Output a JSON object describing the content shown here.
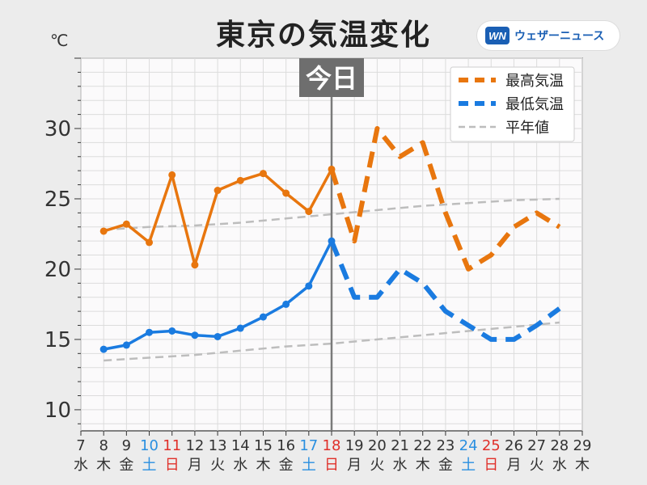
{
  "title": "東京の気温変化",
  "unit": "℃",
  "brand": {
    "logo": "WN",
    "name": "ウェザーニュース"
  },
  "today_label": "今日",
  "colors": {
    "high": "#e8760e",
    "low": "#1a7be0",
    "normal": "#bdbdbd",
    "today_line": "#7a7a7a",
    "saturday": "#2a8fe0",
    "sunday": "#e0302a"
  },
  "chart_data": {
    "type": "line",
    "title": "東京の気温変化",
    "ylabel": "℃",
    "ylim": [
      8.5,
      35
    ],
    "y_ticks": [
      10,
      15,
      20,
      25,
      30
    ],
    "x_dates": [
      7,
      8,
      9,
      10,
      11,
      12,
      13,
      14,
      15,
      16,
      17,
      18,
      19,
      20,
      21,
      22,
      23,
      24,
      25,
      26,
      27,
      28,
      29
    ],
    "x_weekdays": [
      "水",
      "木",
      "金",
      "土",
      "日",
      "月",
      "火",
      "水",
      "木",
      "金",
      "土",
      "日",
      "月",
      "火",
      "水",
      "木",
      "金",
      "土",
      "日",
      "月",
      "火",
      "水",
      "木"
    ],
    "today_date": 18,
    "grid": true,
    "legend_position": "top-right",
    "legend": [
      "最高気温",
      "最低気温",
      "平年値"
    ],
    "series": [
      {
        "name": "最高気温",
        "x_observed": [
          8,
          9,
          10,
          11,
          12,
          13,
          14,
          15,
          16,
          17,
          18
        ],
        "observed": [
          22.7,
          23.2,
          21.9,
          26.7,
          20.3,
          25.6,
          26.3,
          26.8,
          25.4,
          24.1,
          27.1
        ],
        "x_forecast": [
          18,
          19,
          20,
          21,
          22,
          23,
          24,
          25,
          26,
          27,
          28
        ],
        "forecast": [
          27.1,
          22.0,
          30.0,
          28.0,
          29.0,
          24.0,
          20.0,
          21.0,
          23.0,
          24.0,
          23.0
        ]
      },
      {
        "name": "最低気温",
        "x_observed": [
          8,
          9,
          10,
          11,
          12,
          13,
          14,
          15,
          16,
          17,
          18
        ],
        "observed": [
          14.3,
          14.6,
          15.5,
          15.6,
          15.3,
          15.2,
          15.8,
          16.6,
          17.5,
          18.8,
          22.0
        ],
        "x_forecast": [
          18,
          19,
          20,
          21,
          22,
          23,
          24,
          25,
          26,
          27,
          28
        ],
        "forecast": [
          22.0,
          18.0,
          18.0,
          20.0,
          19.0,
          17.0,
          16.0,
          15.0,
          15.0,
          16.0,
          17.2
        ]
      },
      {
        "name": "平年値",
        "x_high": [
          8,
          10,
          12,
          14,
          16,
          18,
          20,
          22,
          24,
          26,
          28
        ],
        "normal_high": [
          22.8,
          23.0,
          23.1,
          23.3,
          23.6,
          23.9,
          24.2,
          24.5,
          24.7,
          24.9,
          25.0
        ],
        "x_low": [
          8,
          10,
          12,
          14,
          16,
          18,
          20,
          22,
          24,
          26,
          28
        ],
        "normal_low": [
          13.5,
          13.7,
          13.9,
          14.2,
          14.5,
          14.7,
          15.0,
          15.3,
          15.6,
          15.9,
          16.2
        ]
      }
    ]
  }
}
